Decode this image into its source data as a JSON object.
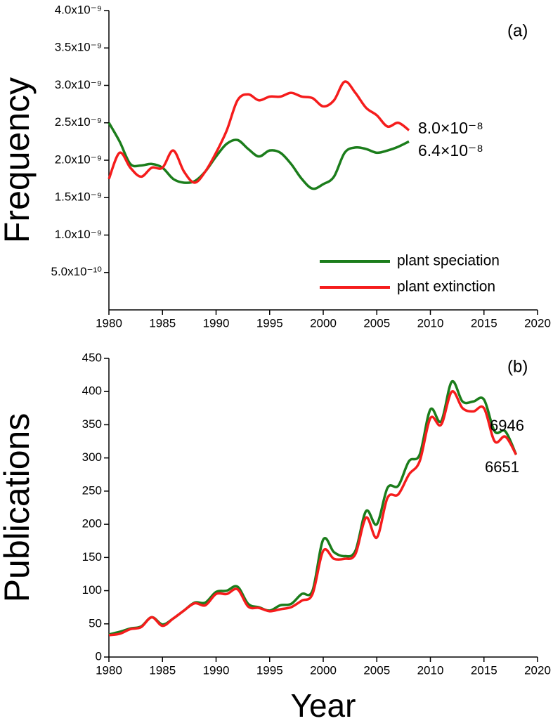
{
  "chart_data": [
    {
      "type": "line",
      "ylabel": "Frequency",
      "x": [
        1980,
        1981,
        1982,
        1983,
        1984,
        1985,
        1986,
        1987,
        1988,
        1989,
        1990,
        1991,
        1992,
        1993,
        1994,
        1995,
        1996,
        1997,
        1998,
        1999,
        2000,
        2001,
        2002,
        2003,
        2004,
        2005,
        2006,
        2007,
        2008
      ],
      "series": [
        {
          "name": "plant speciation",
          "color": "#1b7d1b",
          "values": [
            2.5e-09,
            2.25e-09,
            1.95e-09,
            1.93e-09,
            1.95e-09,
            1.9e-09,
            1.75e-09,
            1.7e-09,
            1.72e-09,
            1.85e-09,
            2.05e-09,
            2.22e-09,
            2.27e-09,
            2.15e-09,
            2.05e-09,
            2.13e-09,
            2.1e-09,
            1.95e-09,
            1.75e-09,
            1.62e-09,
            1.68e-09,
            1.78e-09,
            2.1e-09,
            2.17e-09,
            2.15e-09,
            2.1e-09,
            2.13e-09,
            2.18e-09,
            2.25e-09
          ]
        },
        {
          "name": "plant extinction",
          "color": "#f51c1c",
          "values": [
            1.75e-09,
            2.1e-09,
            1.9e-09,
            1.78e-09,
            1.9e-09,
            1.9e-09,
            2.13e-09,
            1.85e-09,
            1.7e-09,
            1.85e-09,
            2.1e-09,
            2.4e-09,
            2.8e-09,
            2.88e-09,
            2.8e-09,
            2.85e-09,
            2.85e-09,
            2.9e-09,
            2.85e-09,
            2.83e-09,
            2.72e-09,
            2.8e-09,
            3.05e-09,
            2.9e-09,
            2.7e-09,
            2.6e-09,
            2.45e-09,
            2.5e-09,
            2.4e-09
          ]
        }
      ],
      "xlim": [
        1980,
        2020
      ],
      "xticks": [
        1980,
        1985,
        1990,
        1995,
        2000,
        2005,
        2010,
        2015,
        2020
      ],
      "ylim": [
        0,
        4e-09
      ],
      "yticks": [
        {
          "value": 5e-10,
          "label": "5.0x10⁻¹⁰"
        },
        {
          "value": 1e-09,
          "label": "1.0x10⁻⁹"
        },
        {
          "value": 1.5e-09,
          "label": "1.5x10⁻⁹"
        },
        {
          "value": 2e-09,
          "label": "2.0x10⁻⁹"
        },
        {
          "value": 2.5e-09,
          "label": "2.5x10⁻⁹"
        },
        {
          "value": 3e-09,
          "label": "3.0x10⁻⁹"
        },
        {
          "value": 3.5e-09,
          "label": "3.5x10⁻⁹"
        },
        {
          "value": 4e-09,
          "label": "4.0x10⁻⁹"
        }
      ],
      "legend": "lower right",
      "annotations": [
        {
          "text": "(a)",
          "color": "#000000"
        },
        {
          "text": "8.0×10⁻⁸",
          "color": "#f51c1c"
        },
        {
          "text": "6.4×10⁻⁸",
          "color": "#1b7d1b"
        }
      ]
    },
    {
      "type": "line",
      "ylabel": "Publications",
      "xlabel": "Year",
      "x": [
        1980,
        1981,
        1982,
        1983,
        1984,
        1985,
        1986,
        1987,
        1988,
        1989,
        1990,
        1991,
        1992,
        1993,
        1994,
        1995,
        1996,
        1997,
        1998,
        1999,
        2000,
        2001,
        2002,
        2003,
        2004,
        2005,
        2006,
        2007,
        2008,
        2009,
        2010,
        2011,
        2012,
        2013,
        2014,
        2015,
        2016,
        2017,
        2018
      ],
      "series": [
        {
          "color": "#1b7d1b",
          "values": [
            34,
            38,
            43,
            46,
            60,
            49,
            58,
            70,
            82,
            82,
            98,
            100,
            106,
            80,
            75,
            70,
            78,
            80,
            95,
            100,
            177,
            158,
            152,
            160,
            220,
            200,
            255,
            258,
            295,
            305,
            373,
            355,
            415,
            385,
            385,
            388,
            340,
            340,
            305
          ]
        },
        {
          "color": "#f51c1c",
          "values": [
            33,
            35,
            42,
            45,
            60,
            47,
            58,
            70,
            81,
            78,
            95,
            95,
            102,
            76,
            74,
            69,
            72,
            75,
            85,
            95,
            160,
            148,
            148,
            155,
            210,
            180,
            240,
            245,
            275,
            295,
            360,
            350,
            400,
            375,
            370,
            375,
            325,
            332,
            305
          ]
        }
      ],
      "xlim": [
        1980,
        2020
      ],
      "xticks": [
        1980,
        1985,
        1990,
        1995,
        2000,
        2005,
        2010,
        2015,
        2020
      ],
      "ylim": [
        0,
        450
      ],
      "yticks": [
        0,
        50,
        100,
        150,
        200,
        250,
        300,
        350,
        400,
        450
      ],
      "annotations": [
        {
          "text": "(b)",
          "color": "#000000"
        },
        {
          "text": "6946",
          "color": "#1b7d1b"
        },
        {
          "text": "6651",
          "color": "#f51c1c"
        }
      ]
    }
  ]
}
